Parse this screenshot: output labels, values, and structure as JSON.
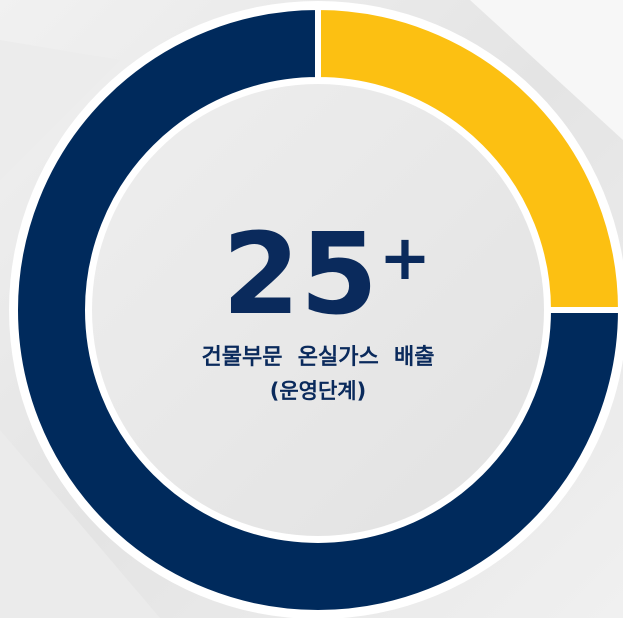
{
  "chart_data": {
    "type": "donut",
    "categories": [
      null,
      null
    ],
    "values": [
      25,
      75
    ],
    "colors": [
      "#fcc012",
      "#002a5c"
    ],
    "center_text": "25",
    "center_superscript": "+",
    "label_lines": [
      "건물부문  온실가스  배출",
      "(운영단계)"
    ]
  }
}
